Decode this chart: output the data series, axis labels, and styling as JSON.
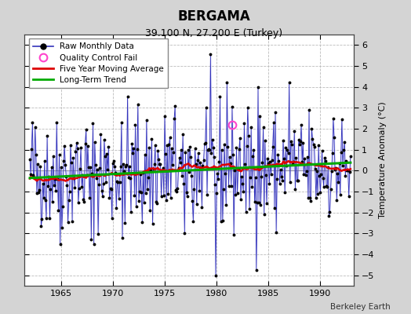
{
  "title": "BERGAMA",
  "subtitle": "39.100 N, 27.200 E (Turkey)",
  "ylabel": "Temperature Anomaly (°C)",
  "credit": "Berkeley Earth",
  "ylim": [
    -5.5,
    6.5
  ],
  "yticks": [
    -5,
    -4,
    -3,
    -2,
    -1,
    0,
    1,
    2,
    3,
    4,
    5,
    6
  ],
  "xlim": [
    1961.5,
    1993.2
  ],
  "xticks": [
    1965,
    1970,
    1975,
    1980,
    1985,
    1990
  ],
  "bg_color": "#d4d4d4",
  "plot_bg_color": "#ffffff",
  "grid_color": "#bbbbbb",
  "line_color": "#3333bb",
  "fill_color": "#aaaaee",
  "ma_color": "#dd0000",
  "trend_color": "#00aa00",
  "qc_color": "#ff44cc",
  "dot_color": "#000000",
  "start_year": 1962,
  "start_month": 1,
  "n_months": 372,
  "qc_time": 1981.5,
  "qc_val": 2.2,
  "seed": 17
}
